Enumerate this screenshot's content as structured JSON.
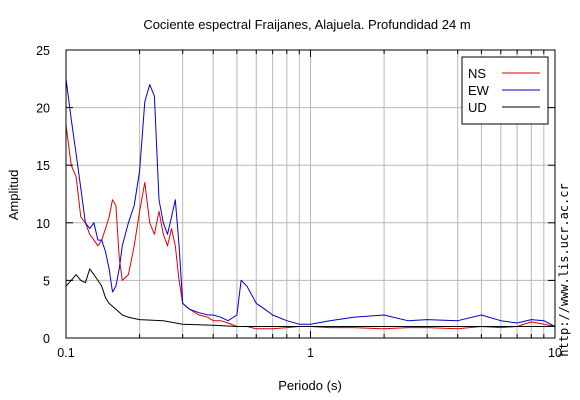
{
  "chart_data": {
    "type": "line",
    "title": "Cociente espectral Fraijanes, Alajuela. Profundidad 24 m",
    "xlabel": "Periodo (s)",
    "ylabel": "Amplitud",
    "xscale": "log",
    "xlim": [
      0.1,
      10
    ],
    "ylim": [
      0,
      25
    ],
    "x_ticks": [
      0.1,
      1,
      10
    ],
    "x_tick_labels": [
      "0.1",
      "1",
      "10"
    ],
    "y_ticks": [
      0,
      5,
      10,
      15,
      20,
      25
    ],
    "y_tick_labels": [
      "0",
      "5",
      "10",
      "15",
      "20",
      "25"
    ],
    "grid": true,
    "legend_position": "top-right",
    "credit": "http://www.lis.ucr.ac.cr",
    "series": [
      {
        "name": "NS",
        "color": "#e00000",
        "x": [
          0.1,
          0.105,
          0.11,
          0.115,
          0.12,
          0.125,
          0.13,
          0.135,
          0.14,
          0.145,
          0.15,
          0.155,
          0.16,
          0.165,
          0.17,
          0.18,
          0.19,
          0.2,
          0.21,
          0.22,
          0.23,
          0.24,
          0.25,
          0.26,
          0.27,
          0.28,
          0.29,
          0.3,
          0.32,
          0.35,
          0.38,
          0.4,
          0.43,
          0.46,
          0.5,
          0.55,
          0.6,
          0.7,
          0.8,
          0.9,
          1.0,
          1.2,
          1.5,
          2.0,
          2.5,
          3.0,
          4.0,
          5.0,
          6.0,
          7.0,
          8.0,
          9.0,
          10.0
        ],
        "values": [
          18.5,
          15.0,
          14.0,
          10.5,
          10.0,
          9.0,
          8.5,
          8.0,
          8.5,
          9.5,
          10.5,
          12.0,
          11.5,
          7.0,
          5.0,
          5.5,
          8.0,
          11.0,
          13.5,
          10.0,
          9.0,
          11.0,
          9.0,
          8.0,
          9.5,
          8.0,
          5.0,
          3.0,
          2.5,
          2.0,
          1.8,
          1.5,
          1.5,
          1.3,
          1.0,
          1.0,
          0.8,
          0.8,
          0.9,
          1.0,
          1.0,
          0.9,
          0.9,
          0.8,
          0.9,
          0.9,
          0.8,
          1.0,
          0.9,
          1.0,
          1.4,
          1.2,
          1.0
        ]
      },
      {
        "name": "EW",
        "color": "#0000cc",
        "x": [
          0.1,
          0.105,
          0.11,
          0.115,
          0.12,
          0.125,
          0.13,
          0.135,
          0.14,
          0.145,
          0.15,
          0.155,
          0.16,
          0.165,
          0.17,
          0.18,
          0.19,
          0.2,
          0.21,
          0.22,
          0.23,
          0.24,
          0.25,
          0.26,
          0.27,
          0.28,
          0.29,
          0.3,
          0.32,
          0.35,
          0.38,
          0.4,
          0.43,
          0.46,
          0.5,
          0.52,
          0.55,
          0.6,
          0.65,
          0.7,
          0.8,
          0.9,
          1.0,
          1.2,
          1.5,
          2.0,
          2.5,
          3.0,
          4.0,
          5.0,
          6.0,
          7.0,
          8.0,
          9.0,
          10.0
        ],
        "values": [
          22.5,
          19.0,
          16.0,
          13.0,
          10.0,
          9.5,
          10.0,
          8.5,
          8.5,
          7.5,
          6.0,
          4.0,
          4.5,
          6.0,
          8.0,
          10.0,
          11.5,
          14.5,
          20.5,
          22.0,
          21.0,
          12.0,
          10.0,
          9.0,
          10.5,
          12.0,
          8.0,
          3.0,
          2.5,
          2.2,
          2.0,
          2.0,
          1.8,
          1.5,
          2.0,
          5.0,
          4.5,
          3.0,
          2.5,
          2.0,
          1.5,
          1.2,
          1.2,
          1.5,
          1.8,
          2.0,
          1.5,
          1.6,
          1.5,
          2.0,
          1.5,
          1.3,
          1.6,
          1.5,
          1.0
        ]
      },
      {
        "name": "UD",
        "color": "#000000",
        "x": [
          0.1,
          0.105,
          0.11,
          0.115,
          0.12,
          0.125,
          0.13,
          0.135,
          0.14,
          0.145,
          0.15,
          0.16,
          0.17,
          0.18,
          0.2,
          0.25,
          0.3,
          0.4,
          0.5,
          0.7,
          1.0,
          2.0,
          5.0,
          10.0
        ],
        "values": [
          4.5,
          5.0,
          5.5,
          5.0,
          4.8,
          6.0,
          5.5,
          5.0,
          4.5,
          3.5,
          3.0,
          2.5,
          2.0,
          1.8,
          1.6,
          1.5,
          1.2,
          1.1,
          1.0,
          1.0,
          1.0,
          1.0,
          1.0,
          1.0
        ]
      }
    ]
  }
}
